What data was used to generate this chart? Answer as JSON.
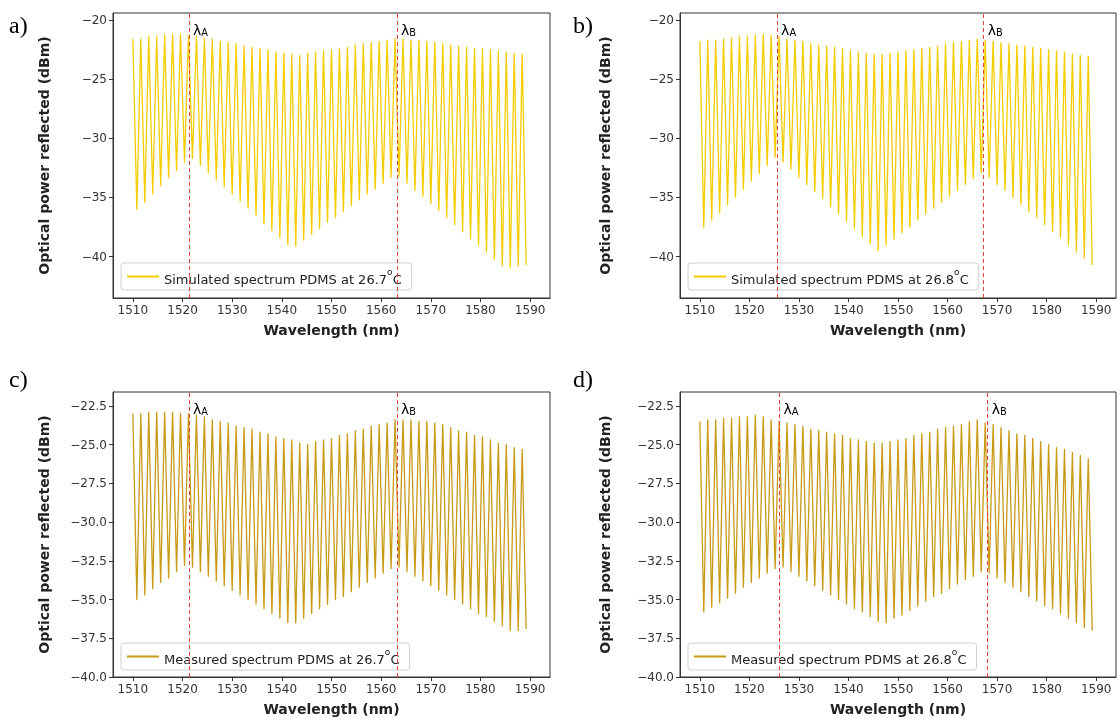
{
  "chart_data": [
    {
      "type": "line",
      "title": "a)",
      "xlabel": "Wavelength (nm)",
      "ylabel": "Optical power reflected (dBm)",
      "xlim": [
        1506,
        1594
      ],
      "xticks": [
        1510,
        1520,
        1530,
        1540,
        1550,
        1560,
        1570,
        1580,
        1590
      ],
      "ylim": [
        -43.5,
        -19.4
      ],
      "yticks": [
        -40,
        -35,
        -30,
        -25,
        -20
      ],
      "grid": false,
      "legend": "bottom left",
      "x": [
        1510,
        1510.8,
        1511.6,
        1512.4,
        1513.2,
        1514,
        1514.8,
        1515.6,
        1516.4,
        1517.2,
        1518,
        1518.8,
        1519.6,
        1520.4,
        1521.2,
        1522,
        1522.8,
        1523.6,
        1524.4,
        1525.2,
        1526,
        1526.8,
        1527.6,
        1528.4,
        1529.2,
        1530,
        1530.8,
        1531.6,
        1532.4,
        1533.2,
        1534,
        1534.8,
        1535.6,
        1536.4,
        1537.2,
        1538,
        1538.8,
        1539.6,
        1540.4,
        1541.2,
        1542,
        1542.8,
        1543.6,
        1544.4,
        1545.2,
        1546,
        1546.8,
        1547.6,
        1548.4,
        1549.2,
        1550,
        1550.8,
        1551.6,
        1552.4,
        1553.2,
        1554,
        1554.8,
        1555.6,
        1556.4,
        1557.2,
        1558,
        1558.8,
        1559.6,
        1560.4,
        1561.2,
        1562,
        1562.8,
        1563.6,
        1564.4,
        1565.2,
        1566,
        1566.8,
        1567.6,
        1568.4,
        1569.2,
        1570,
        1570.8,
        1571.6,
        1572.4,
        1573.2,
        1574,
        1574.8,
        1575.6,
        1576.4,
        1577.2,
        1578,
        1578.8,
        1579.6,
        1580.4,
        1581.2,
        1582,
        1582.8,
        1583.6,
        1584.4,
        1585.2,
        1586,
        1586.8,
        1587.6,
        1588.4,
        1589.2
      ],
      "series": [
        {
          "name": "Simulated spectrum PDMS at 26.7$^{o}$C",
          "color": "#f5cc00",
          "values": [
            -21.6,
            -36.0,
            -21.6,
            -35.4,
            -21.4,
            -34.7,
            -21.4,
            -34.0,
            -21.3,
            -33.3,
            -21.2,
            -32.7,
            -21.2,
            -32.0,
            -21.3,
            -31.7,
            -21.4,
            -32.3,
            -21.5,
            -32.9,
            -21.6,
            -33.5,
            -21.8,
            -34.1,
            -21.9,
            -34.7,
            -22.0,
            -35.3,
            -22.2,
            -35.9,
            -22.3,
            -36.5,
            -22.4,
            -37.2,
            -22.5,
            -37.8,
            -22.7,
            -38.4,
            -22.8,
            -39.0,
            -22.9,
            -39.1,
            -23.0,
            -38.6,
            -22.8,
            -38.1,
            -22.7,
            -37.6,
            -22.6,
            -37.1,
            -22.5,
            -36.7,
            -22.4,
            -36.2,
            -22.3,
            -35.7,
            -22.1,
            -35.2,
            -22.0,
            -34.7,
            -21.9,
            -34.3,
            -21.8,
            -33.8,
            -21.7,
            -33.3,
            -21.6,
            -33.2,
            -21.6,
            -33.8,
            -21.7,
            -34.4,
            -21.7,
            -34.9,
            -21.8,
            -35.5,
            -21.9,
            -36.1,
            -22.0,
            -36.7,
            -22.1,
            -37.3,
            -22.2,
            -37.9,
            -22.3,
            -38.5,
            -22.4,
            -39.0,
            -22.4,
            -39.6,
            -22.5,
            -40.2,
            -22.6,
            -40.8,
            -22.7,
            -40.9,
            -22.8,
            -40.8,
            -22.9,
            -40.7
          ]
        }
      ],
      "ref_lines": [
        {
          "axis": "x",
          "value": 1521.3,
          "label": "λ$_{A}$",
          "color": "#e8403a",
          "line_style": "dashed"
        },
        {
          "axis": "x",
          "value": 1563.2,
          "label": "λ$_{B}$",
          "color": "#e8403a",
          "line_style": "dashed"
        }
      ]
    },
    {
      "type": "line",
      "title": "b)",
      "xlabel": "Wavelength (nm)",
      "ylabel": "Optical power reflected (dBm)",
      "xlim": [
        1506,
        1594
      ],
      "xticks": [
        1510,
        1520,
        1530,
        1540,
        1550,
        1560,
        1570,
        1580,
        1590
      ],
      "ylim": [
        -43.5,
        -19.4
      ],
      "yticks": [
        -40,
        -35,
        -30,
        -25,
        -20
      ],
      "grid": false,
      "legend": "bottom left",
      "x": [
        1510,
        1510.8,
        1511.6,
        1512.4,
        1513.2,
        1514,
        1514.8,
        1515.6,
        1516.4,
        1517.2,
        1518,
        1518.8,
        1519.6,
        1520.4,
        1521.2,
        1522,
        1522.8,
        1523.6,
        1524.4,
        1525.2,
        1526,
        1526.8,
        1527.6,
        1528.4,
        1529.2,
        1530,
        1530.8,
        1531.6,
        1532.4,
        1533.2,
        1534,
        1534.8,
        1535.6,
        1536.4,
        1537.2,
        1538,
        1538.8,
        1539.6,
        1540.4,
        1541.2,
        1542,
        1542.8,
        1543.6,
        1544.4,
        1545.2,
        1546,
        1546.8,
        1547.6,
        1548.4,
        1549.2,
        1550,
        1550.8,
        1551.6,
        1552.4,
        1553.2,
        1554,
        1554.8,
        1555.6,
        1556.4,
        1557.2,
        1558,
        1558.8,
        1559.6,
        1560.4,
        1561.2,
        1562,
        1562.8,
        1563.6,
        1564.4,
        1565.2,
        1566,
        1566.8,
        1567.6,
        1568.4,
        1569.2,
        1570,
        1570.8,
        1571.6,
        1572.4,
        1573.2,
        1574,
        1574.8,
        1575.6,
        1576.4,
        1577.2,
        1578,
        1578.8,
        1579.6,
        1580.4,
        1581.2,
        1582,
        1582.8,
        1583.6,
        1584.4,
        1585.2,
        1586,
        1586.8,
        1587.6,
        1588.4,
        1589.2
      ],
      "series": [
        {
          "name": "Simulated spectrum PDMS at 26.8$^{o}$C",
          "color": "#f5cc00",
          "values": [
            -21.8,
            -37.5,
            -21.7,
            -36.9,
            -21.7,
            -36.3,
            -21.6,
            -35.6,
            -21.5,
            -35.0,
            -21.4,
            -34.3,
            -21.4,
            -33.6,
            -21.3,
            -33.0,
            -21.2,
            -32.3,
            -21.3,
            -31.6,
            -21.4,
            -32.0,
            -21.6,
            -32.6,
            -21.7,
            -33.3,
            -21.8,
            -33.9,
            -22.0,
            -34.5,
            -22.1,
            -35.1,
            -22.2,
            -35.8,
            -22.3,
            -36.4,
            -22.4,
            -37.0,
            -22.6,
            -37.6,
            -22.7,
            -38.3,
            -22.8,
            -38.9,
            -22.9,
            -39.5,
            -22.9,
            -39.0,
            -22.8,
            -38.5,
            -22.7,
            -38.0,
            -22.6,
            -37.5,
            -22.5,
            -36.9,
            -22.4,
            -36.4,
            -22.3,
            -35.9,
            -22.2,
            -35.4,
            -22.0,
            -34.9,
            -21.9,
            -34.4,
            -21.8,
            -33.9,
            -21.7,
            -33.4,
            -21.6,
            -32.9,
            -21.7,
            -33.3,
            -21.8,
            -33.9,
            -21.9,
            -34.4,
            -22.0,
            -35.0,
            -22.1,
            -35.6,
            -22.2,
            -36.2,
            -22.3,
            -36.7,
            -22.4,
            -37.3,
            -22.5,
            -37.9,
            -22.6,
            -38.4,
            -22.7,
            -39.0,
            -22.9,
            -39.6,
            -23.0,
            -40.1,
            -23.1,
            -40.7
          ]
        }
      ],
      "ref_lines": [
        {
          "axis": "x",
          "value": 1525.6,
          "label": "λ$_{A}$",
          "color": "#e8403a",
          "line_style": "dashed"
        },
        {
          "axis": "x",
          "value": 1567.3,
          "label": "λ$_{B}$",
          "color": "#e8403a",
          "line_style": "dashed"
        }
      ]
    },
    {
      "type": "line",
      "title": "c)",
      "xlabel": "Wavelength (nm)",
      "ylabel": "Optical power reflected (dBm)",
      "xlim": [
        1506,
        1594
      ],
      "xticks": [
        1510,
        1520,
        1530,
        1540,
        1550,
        1560,
        1570,
        1580,
        1590
      ],
      "ylim": [
        -40,
        -21.6
      ],
      "yticks": [
        {
          "value": -40,
          "label": "−40.0"
        },
        {
          "value": -37.5,
          "label": "−37.5"
        },
        {
          "value": -35,
          "label": "−35.0"
        },
        {
          "value": -32.5,
          "label": "−32.5"
        },
        {
          "value": -30,
          "label": "−30.0"
        },
        {
          "value": -27.5,
          "label": "−27.5"
        },
        {
          "value": -25,
          "label": "−25.0"
        },
        {
          "value": -22.5,
          "label": "−22.5"
        }
      ],
      "grid": false,
      "legend": "bottom left",
      "x": [
        1510,
        1510.8,
        1511.6,
        1512.4,
        1513.2,
        1514,
        1514.8,
        1515.6,
        1516.4,
        1517.2,
        1518,
        1518.8,
        1519.6,
        1520.4,
        1521.2,
        1522,
        1522.8,
        1523.6,
        1524.4,
        1525.2,
        1526,
        1526.8,
        1527.6,
        1528.4,
        1529.2,
        1530,
        1530.8,
        1531.6,
        1532.4,
        1533.2,
        1534,
        1534.8,
        1535.6,
        1536.4,
        1537.2,
        1538,
        1538.8,
        1539.6,
        1540.4,
        1541.2,
        1542,
        1542.8,
        1543.6,
        1544.4,
        1545.2,
        1546,
        1546.8,
        1547.6,
        1548.4,
        1549.2,
        1550,
        1550.8,
        1551.6,
        1552.4,
        1553.2,
        1554,
        1554.8,
        1555.6,
        1556.4,
        1557.2,
        1558,
        1558.8,
        1559.6,
        1560.4,
        1561.2,
        1562,
        1562.8,
        1563.6,
        1564.4,
        1565.2,
        1566,
        1566.8,
        1567.6,
        1568.4,
        1569.2,
        1570,
        1570.8,
        1571.6,
        1572.4,
        1573.2,
        1574,
        1574.8,
        1575.6,
        1576.4,
        1577.2,
        1578,
        1578.8,
        1579.6,
        1580.4,
        1581.2,
        1582,
        1582.8,
        1583.6,
        1584.4,
        1585.2,
        1586,
        1586.8,
        1587.6,
        1588.4,
        1589.2
      ],
      "series": [
        {
          "name": "Measured spectrum PDMS at 26.7$^{o}$C",
          "color": "#c99a16",
          "values": [
            -23.0,
            -35.0,
            -23.0,
            -34.7,
            -22.9,
            -34.3,
            -22.9,
            -33.9,
            -22.9,
            -33.6,
            -22.9,
            -33.2,
            -23.0,
            -32.8,
            -23.0,
            -32.9,
            -23.1,
            -33.2,
            -23.2,
            -33.5,
            -23.4,
            -33.8,
            -23.5,
            -34.1,
            -23.6,
            -34.4,
            -23.8,
            -34.7,
            -23.9,
            -35.0,
            -24.0,
            -35.3,
            -24.2,
            -35.6,
            -24.3,
            -35.9,
            -24.5,
            -36.2,
            -24.6,
            -36.5,
            -24.7,
            -36.5,
            -24.9,
            -36.2,
            -25.0,
            -35.9,
            -24.8,
            -35.6,
            -24.7,
            -35.3,
            -24.6,
            -35.0,
            -24.4,
            -34.8,
            -24.3,
            -34.5,
            -24.1,
            -34.2,
            -24.0,
            -33.9,
            -23.8,
            -33.6,
            -23.7,
            -33.3,
            -23.6,
            -33.0,
            -23.4,
            -32.9,
            -23.4,
            -33.2,
            -23.4,
            -33.5,
            -23.5,
            -33.8,
            -23.5,
            -34.1,
            -23.6,
            -34.4,
            -23.7,
            -34.7,
            -23.9,
            -35.0,
            -24.1,
            -35.3,
            -24.2,
            -35.6,
            -24.4,
            -35.9,
            -24.5,
            -36.1,
            -24.7,
            -36.4,
            -24.9,
            -36.7,
            -25.0,
            -37.0,
            -25.2,
            -37.0,
            -25.3,
            -36.9
          ]
        }
      ],
      "ref_lines": [
        {
          "axis": "x",
          "value": 1521.3,
          "label": "λ$_{A}$",
          "color": "#e8403a",
          "line_style": "dashed"
        },
        {
          "axis": "x",
          "value": 1563.2,
          "label": "λ$_{B}$",
          "color": "#e8403a",
          "line_style": "dashed"
        }
      ]
    },
    {
      "type": "line",
      "title": "d)",
      "xlabel": "Wavelength (nm)",
      "ylabel": "Optical power reflected (dBm)",
      "xlim": [
        1506,
        1594
      ],
      "xticks": [
        1510,
        1520,
        1530,
        1540,
        1550,
        1560,
        1570,
        1580,
        1590
      ],
      "ylim": [
        -40,
        -21.6
      ],
      "yticks": [
        {
          "value": -40,
          "label": "−40.0"
        },
        {
          "value": -37.5,
          "label": "−37.5"
        },
        {
          "value": -35,
          "label": "−35.0"
        },
        {
          "value": -32.5,
          "label": "−32.5"
        },
        {
          "value": -30,
          "label": "−30.0"
        },
        {
          "value": -27.5,
          "label": "−27.5"
        },
        {
          "value": -25,
          "label": "−25.0"
        },
        {
          "value": -22.5,
          "label": "−22.5"
        }
      ],
      "grid": false,
      "legend": "bottom left",
      "x": [
        1510,
        1510.8,
        1511.6,
        1512.4,
        1513.2,
        1514,
        1514.8,
        1515.6,
        1516.4,
        1517.2,
        1518,
        1518.8,
        1519.6,
        1520.4,
        1521.2,
        1522,
        1522.8,
        1523.6,
        1524.4,
        1525.2,
        1526,
        1526.8,
        1527.6,
        1528.4,
        1529.2,
        1530,
        1530.8,
        1531.6,
        1532.4,
        1533.2,
        1534,
        1534.8,
        1535.6,
        1536.4,
        1537.2,
        1538,
        1538.8,
        1539.6,
        1540.4,
        1541.2,
        1542,
        1542.8,
        1543.6,
        1544.4,
        1545.2,
        1546,
        1546.8,
        1547.6,
        1548.4,
        1549.2,
        1550,
        1550.8,
        1551.6,
        1552.4,
        1553.2,
        1554,
        1554.8,
        1555.6,
        1556.4,
        1557.2,
        1558,
        1558.8,
        1559.6,
        1560.4,
        1561.2,
        1562,
        1562.8,
        1563.6,
        1564.4,
        1565.2,
        1566,
        1566.8,
        1567.6,
        1568.4,
        1569.2,
        1570,
        1570.8,
        1571.6,
        1572.4,
        1573.2,
        1574,
        1574.8,
        1575.6,
        1576.4,
        1577.2,
        1578,
        1578.8,
        1579.6,
        1580.4,
        1581.2,
        1582,
        1582.8,
        1583.6,
        1584.4,
        1585.2,
        1586,
        1586.8,
        1587.6,
        1588.4,
        1589.2
      ],
      "series": [
        {
          "name": "Measured spectrum PDMS at 26.8$^{o}$C",
          "color": "#c99a16",
          "values": [
            -23.5,
            -35.8,
            -23.4,
            -35.5,
            -23.4,
            -35.2,
            -23.3,
            -34.9,
            -23.3,
            -34.6,
            -23.2,
            -34.2,
            -23.2,
            -33.9,
            -23.1,
            -33.6,
            -23.2,
            -33.3,
            -23.4,
            -33.0,
            -23.5,
            -32.9,
            -23.6,
            -33.2,
            -23.7,
            -33.5,
            -23.8,
            -33.8,
            -24.0,
            -34.1,
            -24.1,
            -34.4,
            -24.2,
            -34.7,
            -24.3,
            -35.0,
            -24.4,
            -35.3,
            -24.6,
            -35.6,
            -24.7,
            -35.8,
            -24.8,
            -36.1,
            -24.9,
            -36.4,
            -24.9,
            -36.5,
            -24.8,
            -36.2,
            -24.7,
            -36.0,
            -24.6,
            -35.7,
            -24.4,
            -35.4,
            -24.3,
            -35.1,
            -24.2,
            -34.8,
            -24.0,
            -34.6,
            -23.9,
            -34.3,
            -23.8,
            -34.0,
            -23.7,
            -33.7,
            -23.5,
            -33.5,
            -23.4,
            -33.2,
            -23.6,
            -33.3,
            -23.7,
            -33.6,
            -23.9,
            -33.9,
            -24.1,
            -34.2,
            -24.3,
            -34.5,
            -24.4,
            -34.8,
            -24.6,
            -35.1,
            -24.8,
            -35.4,
            -25.0,
            -35.6,
            -25.2,
            -35.9,
            -25.3,
            -36.2,
            -25.5,
            -36.5,
            -25.7,
            -36.8,
            -25.9,
            -37.0
          ]
        }
      ],
      "ref_lines": [
        {
          "axis": "x",
          "value": 1526.1,
          "label": "λ$_{A}$",
          "color": "#e8403a",
          "line_style": "dashed"
        },
        {
          "axis": "x",
          "value": 1568.1,
          "label": "λ$_{B}$",
          "color": "#e8403a",
          "line_style": "dashed"
        }
      ]
    }
  ]
}
